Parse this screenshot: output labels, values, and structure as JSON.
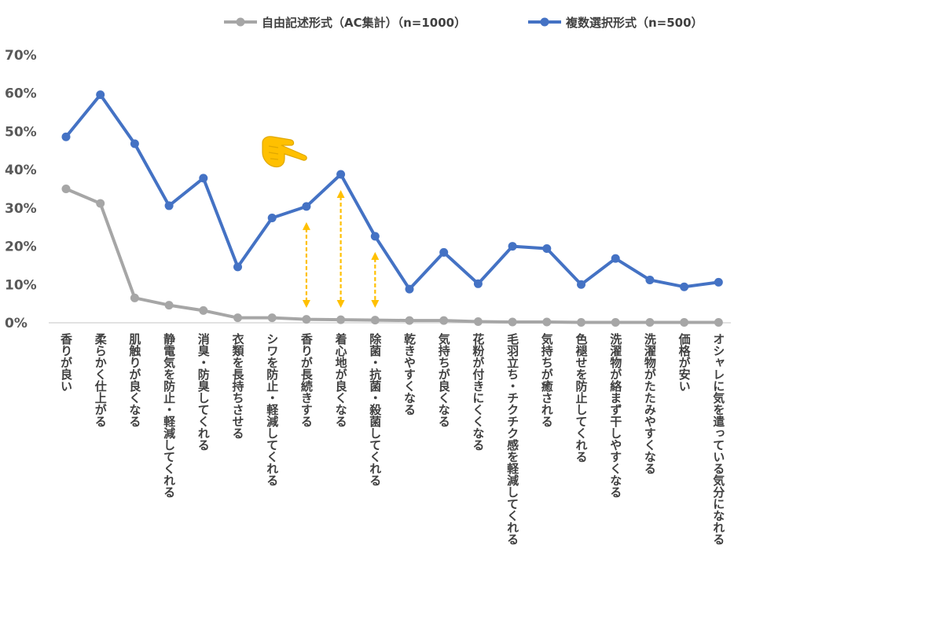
{
  "chart_data": {
    "type": "line",
    "title": "",
    "xlabel": "",
    "ylabel": "",
    "ylim": [
      0,
      70
    ],
    "yticks": [
      "0%",
      "10%",
      "20%",
      "30%",
      "40%",
      "50%",
      "60%",
      "70%"
    ],
    "grid": false,
    "legend_position": "top",
    "categories": [
      "香りが良い",
      "柔らかく仕上がる",
      "肌触りが良くなる",
      "静電気を防止・軽減してくれる",
      "消臭・防臭してくれる",
      "衣類を長持ちさせる",
      "シワを防止・軽減してくれる",
      "香りが長続きする",
      "着心地が良くなる",
      "除菌・抗菌・殺菌してくれる",
      "乾きやすくなる",
      "気持ちが良くなる",
      "花粉が付きにくくなる",
      "毛羽立ち・チクチク感を軽減してくれる",
      "気持ちが癒される",
      "色褪せを防止してくれる",
      "洗濯物が絡まず干しやすくなる",
      "洗濯物がたたみやすくなる",
      "価格が安い",
      "オシャレに気を遣っている気分になれる"
    ],
    "series": [
      {
        "name": "自由記述形式（AC集計）（n=1000）",
        "color": "#a6a6a6",
        "values": [
          35,
          31.2,
          6.5,
          4.6,
          3.2,
          1.3,
          1.3,
          0.9,
          0.8,
          0.7,
          0.6,
          0.6,
          0.3,
          0.2,
          0.2,
          0.1,
          0.1,
          0.1,
          0.1,
          0.1
        ]
      },
      {
        "name": "複数選択形式（n=500）",
        "color": "#4472c4",
        "values": [
          48.6,
          59.6,
          46.8,
          30.6,
          37.8,
          14.6,
          27.4,
          30.4,
          38.8,
          22.6,
          8.8,
          18.4,
          10.2,
          20,
          19.4,
          10,
          16.8,
          11.2,
          9.4,
          10.6
        ]
      }
    ],
    "annotations": {
      "arrow_color": "#ffc000",
      "arrow_categories": [
        7,
        8,
        9
      ],
      "pointer_icon": "pointing-hand-icon",
      "pointer_color": "#ffc000"
    }
  }
}
